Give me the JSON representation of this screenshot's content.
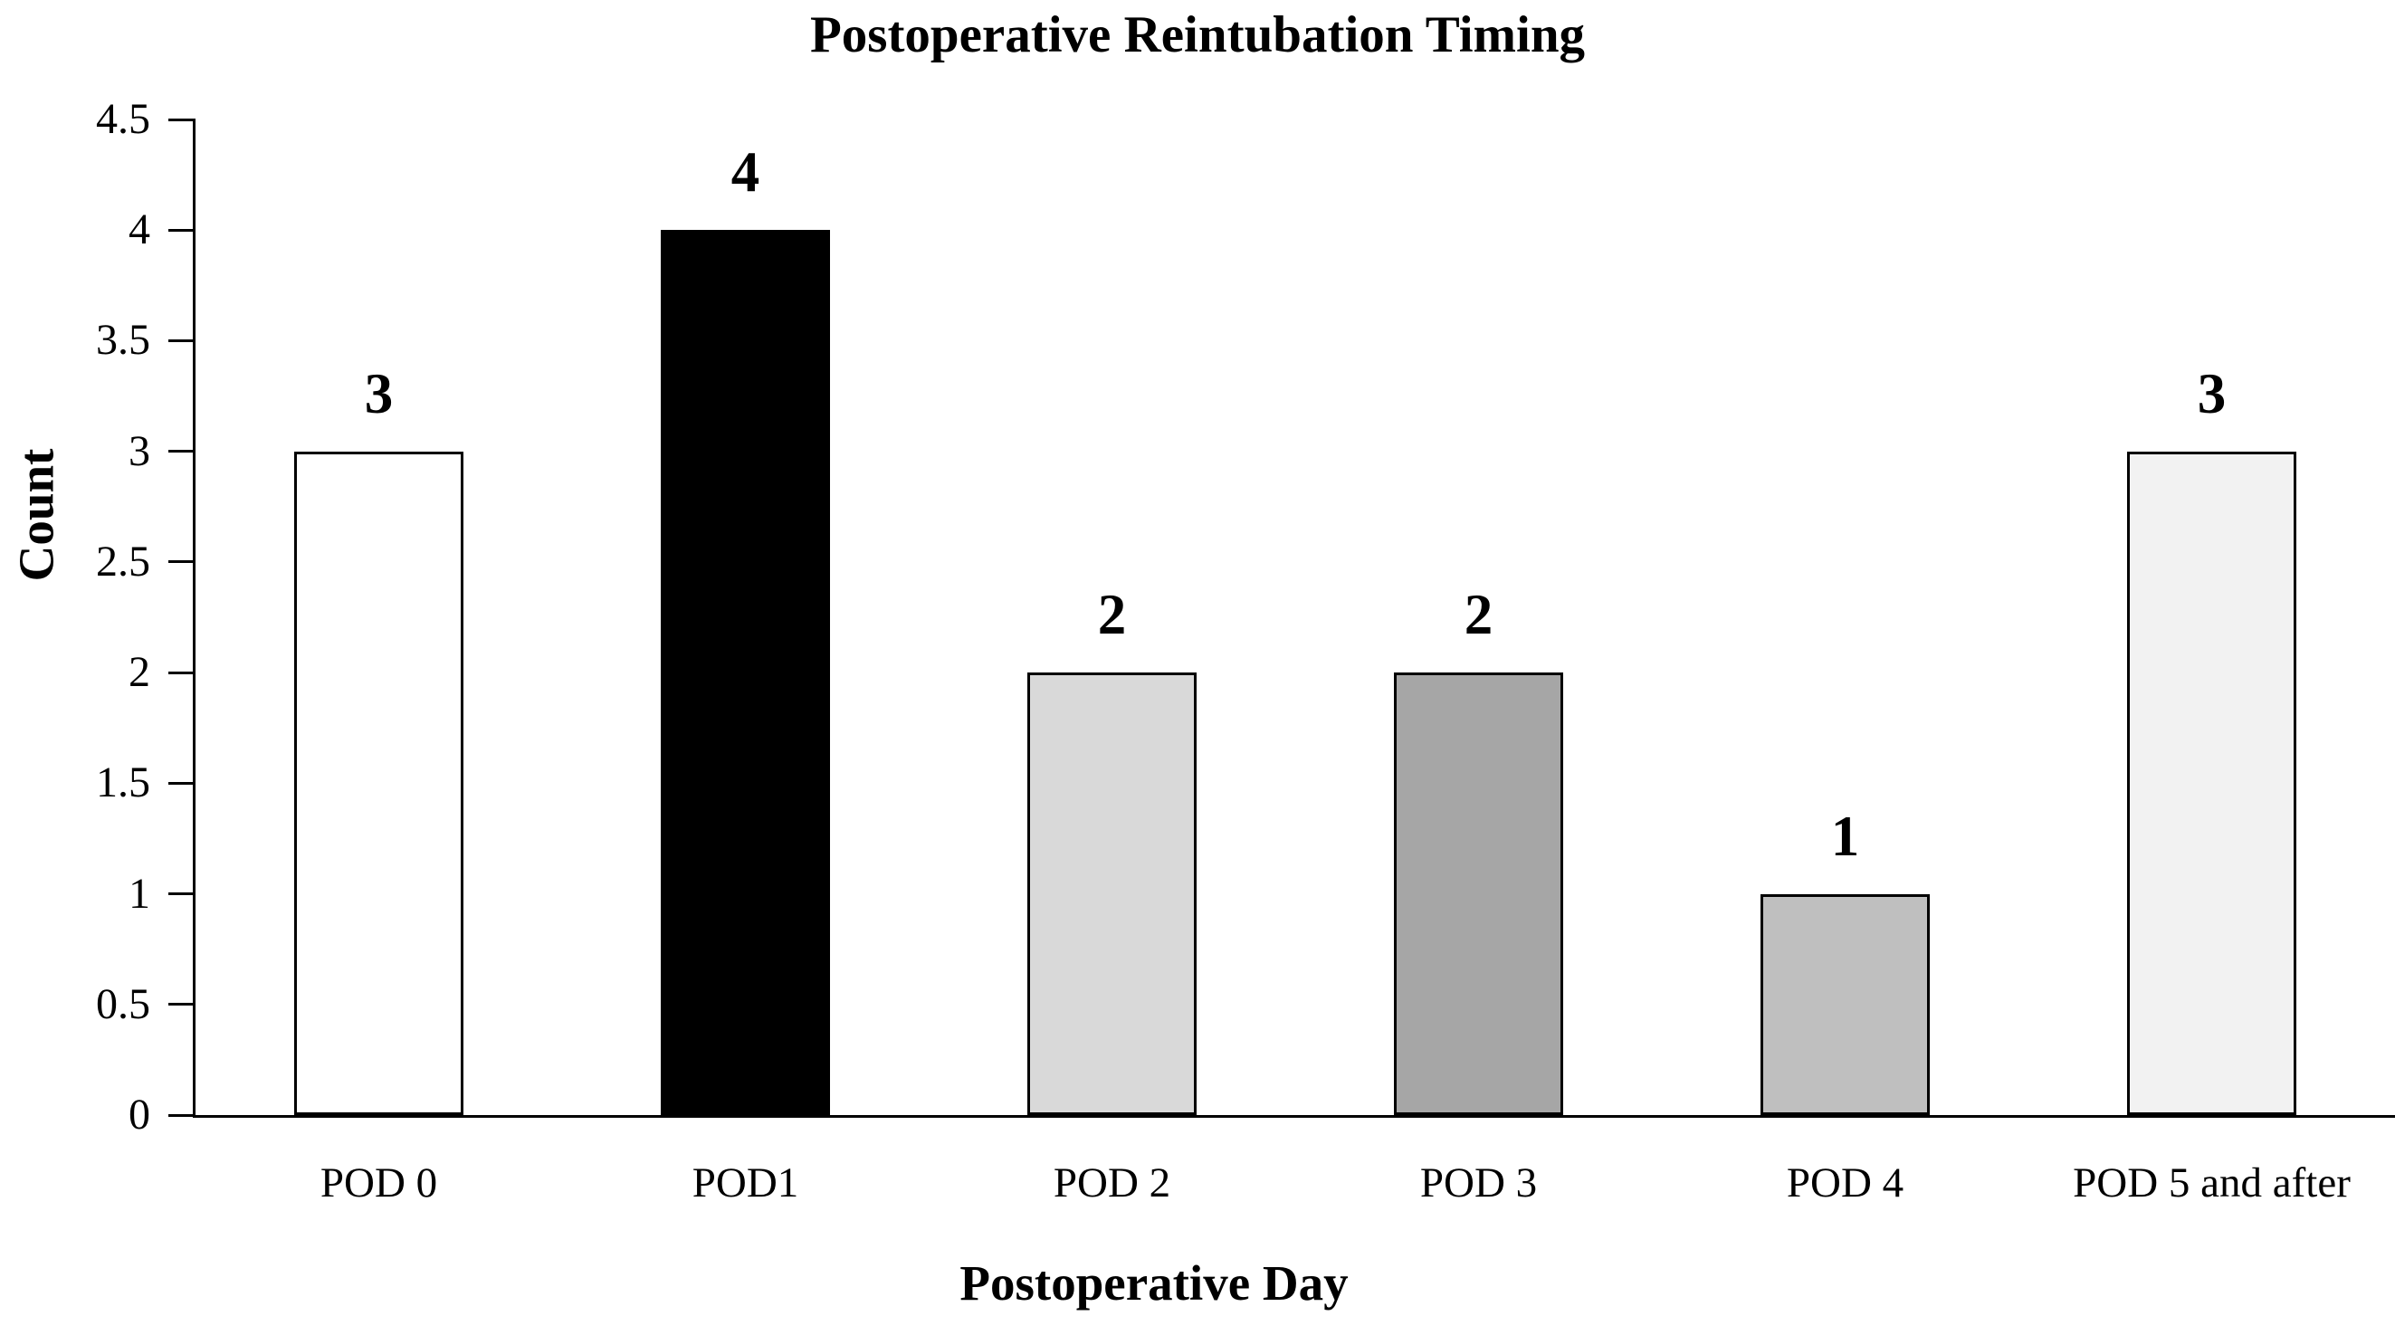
{
  "chart_data": {
    "type": "bar",
    "title": "Postoperative Reintubation Timing",
    "xlabel": "Postoperative Day",
    "ylabel": "Count",
    "categories": [
      "POD 0",
      "POD1",
      "POD 2",
      "POD 3",
      "POD 4",
      "POD 5 and after"
    ],
    "values": [
      3,
      4,
      2,
      2,
      1,
      3
    ],
    "data_labels": [
      "3",
      "4",
      "2",
      "2",
      "1",
      "3"
    ],
    "bar_colors": [
      "#FFFFFF",
      "#000000",
      "#D9D9D9",
      "#A6A6A6",
      "#BFBFBF",
      "#F2F2F2"
    ],
    "bar_border_color": "#000000",
    "axis_color": "#000000",
    "ylim": [
      0,
      4.5
    ],
    "ytick_step": 0.5,
    "yticks": [
      "0",
      "0.5",
      "1",
      "1.5",
      "2",
      "2.5",
      "3",
      "3.5",
      "4",
      "4.5"
    ],
    "grid": false,
    "legend_position": "none"
  }
}
